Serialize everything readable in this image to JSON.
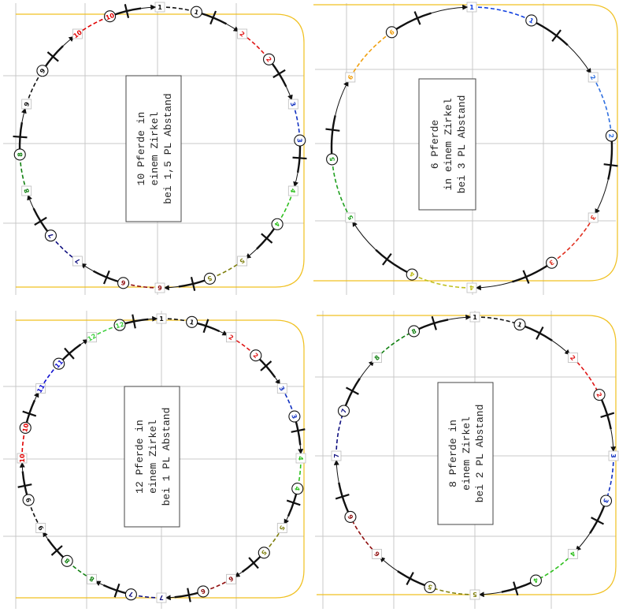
{
  "colors": {
    "1": "#111111",
    "2": "#e01818",
    "3": "#1030c0",
    "4": "#30c020",
    "5": "#808010",
    "6": "#901010",
    "7": "#101080",
    "8": "#108010",
    "9": "#111111",
    "10": "#e00000",
    "11": "#1010d0",
    "12": "#40d040"
  },
  "panels": [
    {
      "name": "panel-10-horses",
      "note": [
        "10 Pferde in",
        "einem Zirkel",
        "bei 1,5 PL Abstand"
      ],
      "labels": [
        "1",
        "2",
        "3",
        "4",
        "5",
        "6",
        "7",
        "8",
        "9",
        "10"
      ],
      "color_override": {}
    },
    {
      "name": "panel-6-horses",
      "note": [
        "6 Pferde",
        "in einem Zirkel",
        "bei 3 PL Abstand"
      ],
      "labels": [
        "1",
        "2",
        "3",
        "4",
        "5",
        "6"
      ],
      "color_override": {
        "1": "#1040e0",
        "2": "#3070e0",
        "3": "#e03020",
        "4": "#c0c020",
        "5": "#20a020",
        "6": "#f0a010"
      }
    },
    {
      "name": "panel-12-horses",
      "note": [
        "12 Pferde in",
        "einem Zirkel",
        "bei 1 PL Abstand"
      ],
      "labels": [
        "1",
        "2",
        "3",
        "4",
        "5",
        "6",
        "7",
        "8",
        "9",
        "10",
        "11",
        "12"
      ],
      "color_override": {}
    },
    {
      "name": "panel-8-horses",
      "note": [
        "8 Pferde in",
        "einem Zirkel",
        "bei 2 PL Abstand"
      ],
      "labels": [
        "1",
        "2",
        "3",
        "4",
        "5",
        "6",
        "7",
        "8"
      ],
      "color_override": {}
    }
  ]
}
